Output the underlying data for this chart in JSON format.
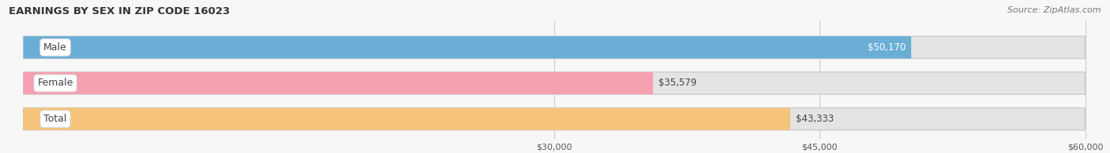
{
  "title": "EARNINGS BY SEX IN ZIP CODE 16023",
  "source": "Source: ZipAtlas.com",
  "categories": [
    "Male",
    "Female",
    "Total"
  ],
  "values": [
    50170,
    35579,
    43333
  ],
  "bar_colors": [
    "#6aaed6",
    "#f4a0b0",
    "#f5c47a"
  ],
  "track_color": "#e4e4e4",
  "xmin": 0,
  "xmax": 60000,
  "xticks": [
    30000,
    45000,
    60000
  ],
  "xtick_labels": [
    "$30,000",
    "$45,000",
    "$60,000"
  ],
  "value_labels": [
    "$50,170",
    "$35,579",
    "$43,333"
  ],
  "value_label_inside": [
    true,
    false,
    false
  ],
  "figsize": [
    14.06,
    1.95
  ],
  "dpi": 100,
  "bg_color": "#f7f7f7"
}
